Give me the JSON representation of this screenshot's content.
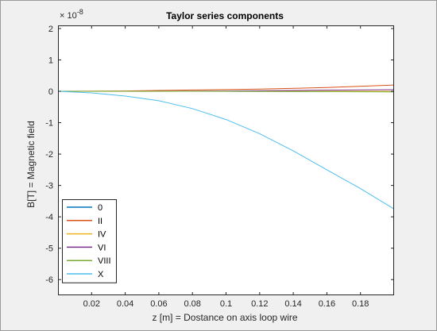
{
  "chart_data": {
    "type": "line",
    "title": "Taylor series components",
    "xlabel": "z [m] = Dostance on axis loop wire",
    "ylabel": "B[T] = Magnetic field",
    "exponent_label": "× 10",
    "exponent_power": "-8",
    "xlim": [
      0,
      0.2
    ],
    "ylim": [
      -6.5,
      2.1
    ],
    "x_ticks": [
      0.02,
      0.04,
      0.06,
      0.08,
      0.1,
      0.12,
      0.14,
      0.16,
      0.18
    ],
    "x_tick_labels": [
      "0.02",
      "0.04",
      "0.06",
      "0.08",
      "0.1",
      "0.12",
      "0.14",
      "0.16",
      "0.18"
    ],
    "y_ticks": [
      2,
      1,
      0,
      -1,
      -2,
      -3,
      -4,
      -5,
      -6
    ],
    "y_tick_labels": [
      "2",
      "1",
      "0",
      "-1",
      "-2",
      "-3",
      "-4",
      "-5",
      "-6"
    ],
    "legend_position": "bottom-left",
    "series": [
      {
        "name": "0",
        "color": "#0072bd",
        "x": [
          0,
          0.05,
          0.1,
          0.15,
          0.2
        ],
        "y": [
          0,
          0,
          0,
          0,
          0
        ]
      },
      {
        "name": "II",
        "color": "#d95319",
        "x": [
          0,
          0.04,
          0.08,
          0.12,
          0.16,
          0.2
        ],
        "y": [
          0,
          0.01,
          0.04,
          0.07,
          0.12,
          0.2
        ]
      },
      {
        "name": "IV",
        "color": "#edb120",
        "x": [
          0,
          0.05,
          0.1,
          0.15,
          0.2
        ],
        "y": [
          0,
          0,
          0,
          0,
          0
        ]
      },
      {
        "name": "VI",
        "color": "#7e2f8e",
        "x": [
          0,
          0.05,
          0.1,
          0.15,
          0.2
        ],
        "y": [
          0,
          0,
          0.01,
          0.03,
          0.05
        ]
      },
      {
        "name": "VIII",
        "color": "#77ac30",
        "x": [
          0,
          0.05,
          0.1,
          0.15,
          0.2
        ],
        "y": [
          0,
          0,
          0,
          -0.01,
          -0.02
        ]
      },
      {
        "name": "X",
        "color": "#4dbeee",
        "x": [
          0,
          0.02,
          0.04,
          0.06,
          0.08,
          0.1,
          0.12,
          0.14,
          0.16,
          0.18,
          0.2
        ],
        "y": [
          0,
          -0.05,
          -0.15,
          -0.3,
          -0.55,
          -0.9,
          -1.35,
          -1.9,
          -2.5,
          -3.1,
          -3.75
        ]
      }
    ]
  }
}
